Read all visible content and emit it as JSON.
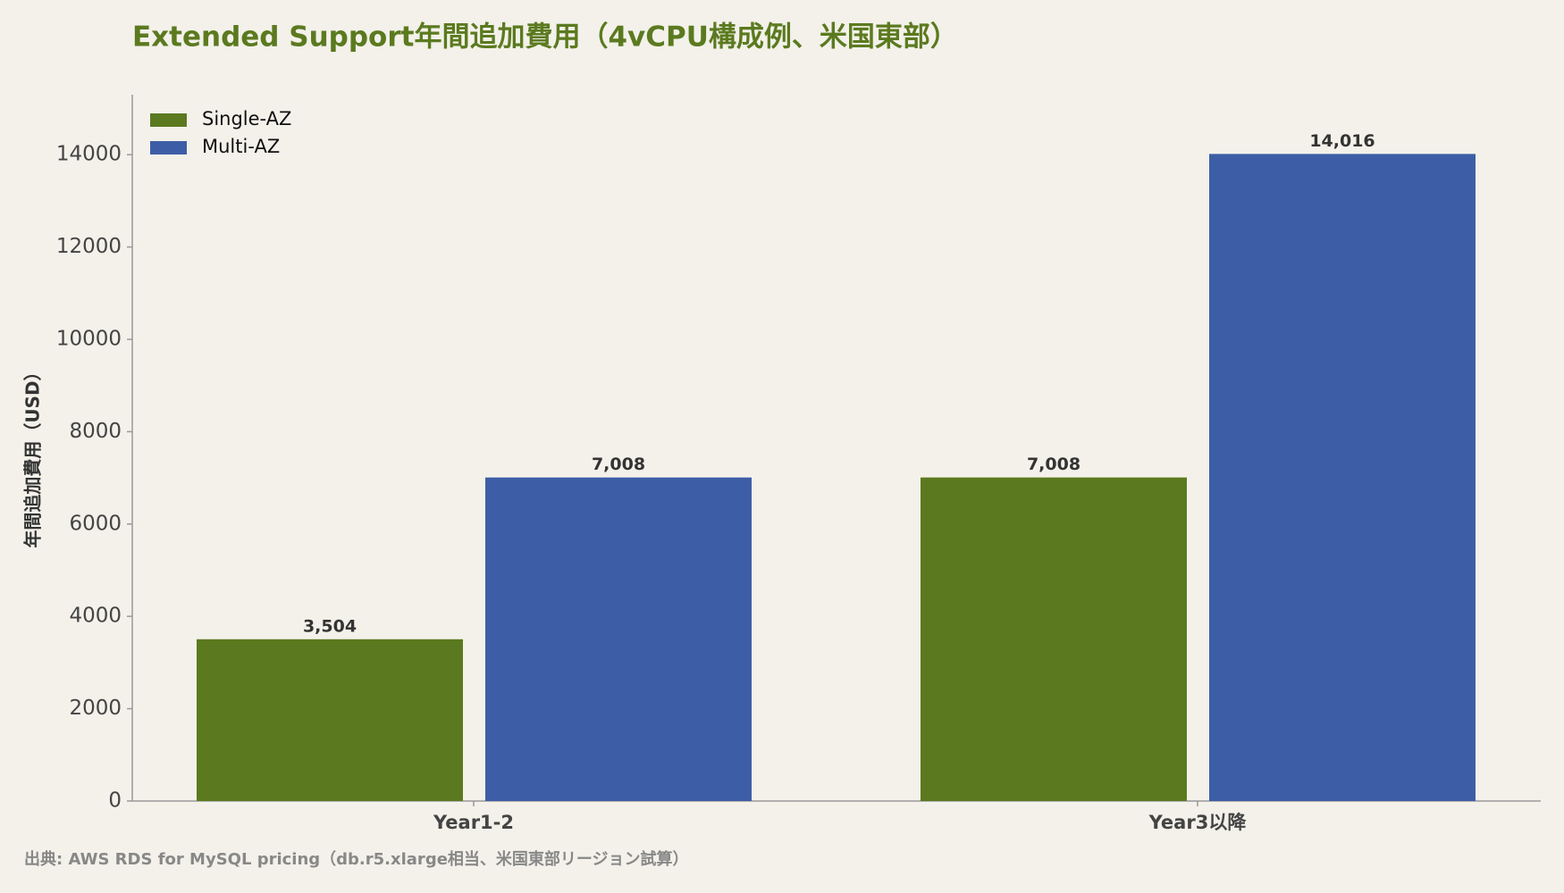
{
  "chart_data": {
    "type": "bar",
    "title": "Extended Support年間追加費用（4vCPU構成例、米国東部）",
    "y_label": "年間追加費用（USD）",
    "source": "出典: AWS RDS for MySQL pricing（db.r5.xlarge相当、米国東部リージョン試算）",
    "categories": [
      "Year1-2",
      "Year3以降"
    ],
    "series": [
      {
        "name": "Single-AZ",
        "color": "#5b7a1f",
        "values": [
          3504,
          7008
        ],
        "value_labels": [
          "3,504",
          "7,008"
        ]
      },
      {
        "name": "Multi-AZ",
        "color": "#3d5ea6",
        "values": [
          7008,
          14016
        ],
        "value_labels": [
          "7,008",
          "14,016"
        ]
      }
    ],
    "ylim": [
      0,
      15300
    ],
    "yticks": [
      0,
      2000,
      4000,
      6000,
      8000,
      10000,
      12000,
      14000
    ],
    "legend": "upper left"
  }
}
